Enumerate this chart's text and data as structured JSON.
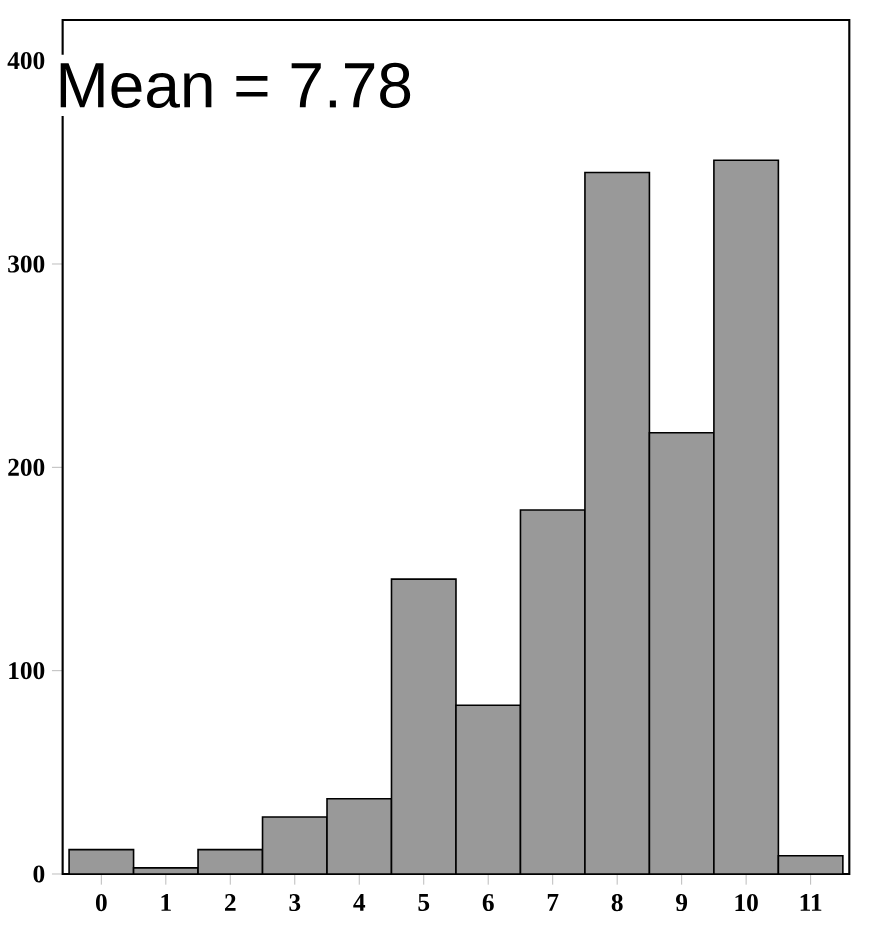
{
  "chart_data": {
    "type": "histogram",
    "bins": [
      -0.5,
      0.5,
      1.5,
      2.5,
      3.5,
      4.5,
      5.5,
      6.5,
      7.5,
      8.5,
      9.5,
      10.5,
      11.5
    ],
    "values": [
      12,
      3,
      12,
      28,
      37,
      145,
      83,
      179,
      345,
      217,
      351,
      9
    ],
    "color": "#999999",
    "xlim": [
      -0.6,
      11.6
    ],
    "ylim": [
      0,
      420
    ],
    "xticks": [
      0,
      1,
      2,
      3,
      4,
      5,
      6,
      7,
      8,
      9,
      10,
      11
    ],
    "yticks": [
      0,
      100,
      200,
      300,
      400
    ],
    "annotations": [
      "Mean = 7.78"
    ]
  }
}
